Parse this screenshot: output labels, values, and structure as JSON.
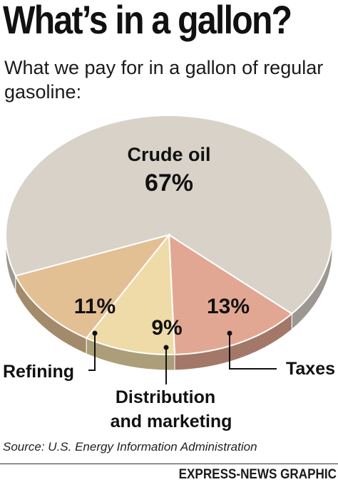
{
  "header": {
    "title": "What’s in a gallon?",
    "subtitle": "What we pay for in a gallon of regular gasoline:"
  },
  "chart_data": {
    "type": "pie",
    "categories": [
      "Crude oil",
      "Refining",
      "Distribution and marketing",
      "Taxes"
    ],
    "values": [
      67,
      11,
      9,
      13
    ],
    "value_labels": [
      "67%",
      "11%",
      "9%",
      "13%"
    ],
    "unit": "%",
    "colors": [
      "#d9d2c9",
      "#e3bf94",
      "#efdba8",
      "#e2a792"
    ],
    "callout_lines": {
      "Distribution and marketing": [
        "Distribution",
        "and marketing"
      ]
    },
    "title": "What’s in a gallon?",
    "subtitle": "What we pay for in a gallon of regular gasoline:"
  },
  "footer": {
    "source": "Source: U.S. Energy Information Administration",
    "credit": "EXPRESS-NEWS GRAPHIC"
  }
}
